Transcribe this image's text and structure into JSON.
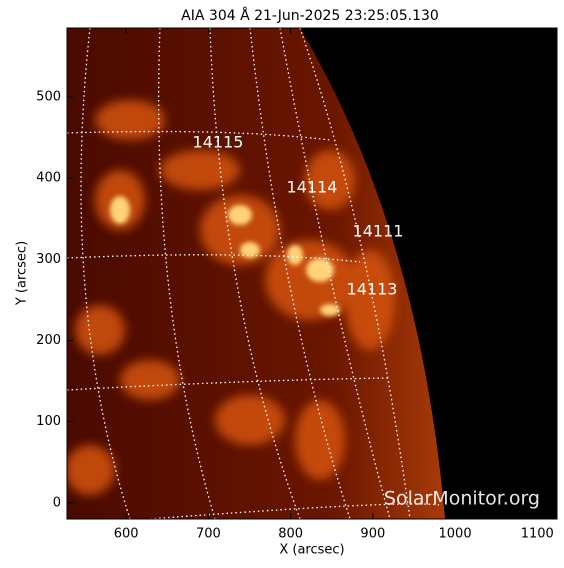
{
  "chart_data": {
    "type": "image",
    "title": "AIA 304 Å 21-Jun-2025 23:25:05.130",
    "xlabel": "X (arcsec)",
    "ylabel": "Y (arcsec)",
    "xlim": [
      528,
      1124
    ],
    "ylim": [
      -20,
      585
    ],
    "xticks": [
      600,
      700,
      800,
      900,
      1000,
      1100
    ],
    "yticks": [
      0,
      100,
      200,
      300,
      400,
      500
    ],
    "annotations": [
      "14115",
      "14114",
      "14111",
      "14113"
    ],
    "watermark": "SolarMonitor.org"
  }
}
